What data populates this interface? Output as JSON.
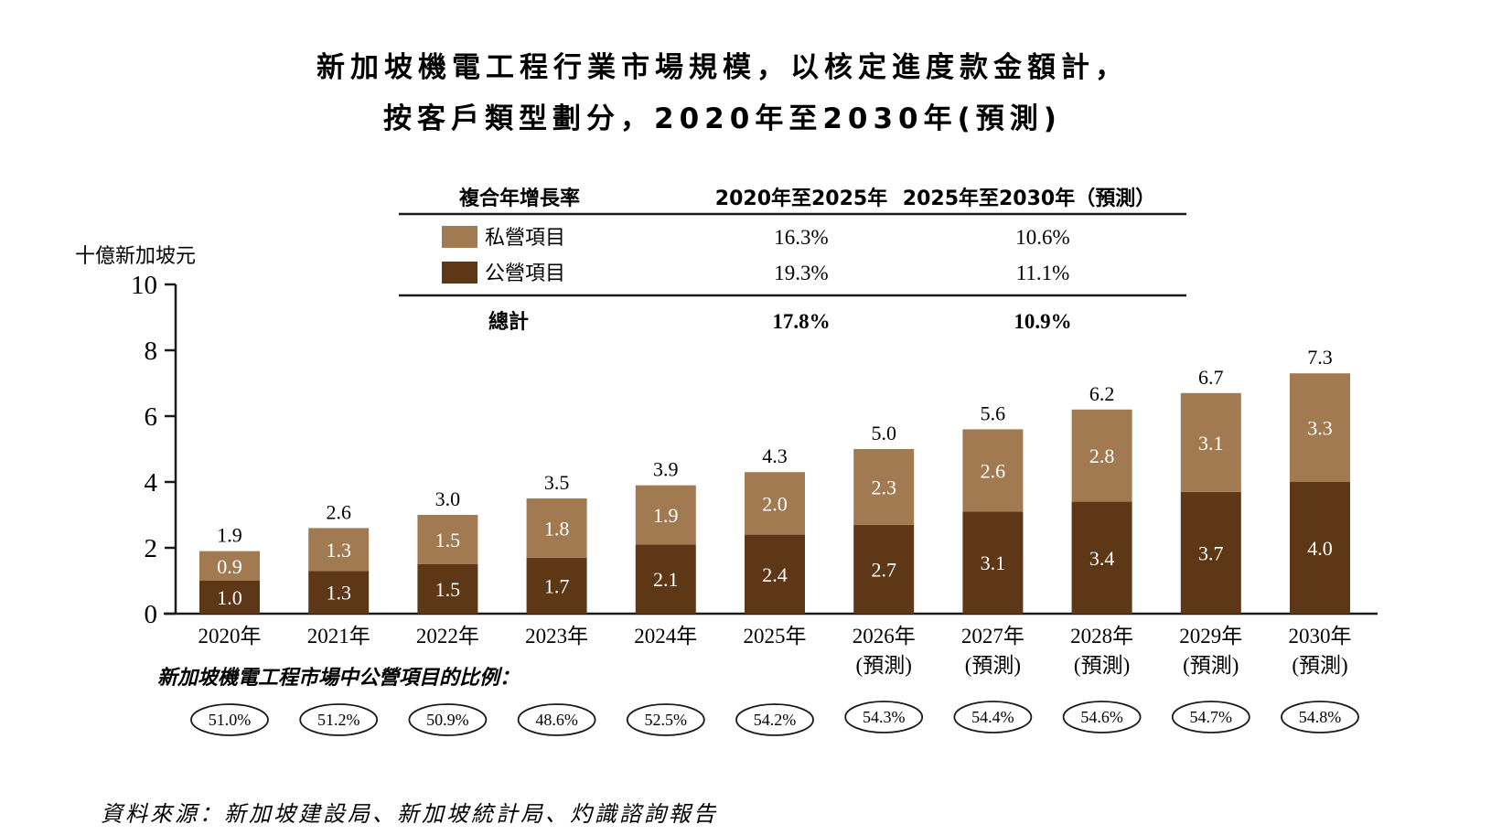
{
  "chart_data": {
    "type": "bar",
    "stacked": true,
    "title_line1": "新加坡機電工程行業市場規模，以核定進度款金額計，",
    "title_line2": "按客戶類型劃分，2020年至2030年(預測)",
    "ylabel": "十億新加坡元",
    "ylim": [
      0,
      10
    ],
    "yticks": [
      "0",
      "2",
      "4",
      "6",
      "8",
      "10"
    ],
    "categories": [
      {
        "year": "2020年",
        "note": ""
      },
      {
        "year": "2021年",
        "note": ""
      },
      {
        "year": "2022年",
        "note": ""
      },
      {
        "year": "2023年",
        "note": ""
      },
      {
        "year": "2024年",
        "note": ""
      },
      {
        "year": "2025年",
        "note": ""
      },
      {
        "year": "2026年",
        "note": "(預測)"
      },
      {
        "year": "2027年",
        "note": "(預測)"
      },
      {
        "year": "2028年",
        "note": "(預測)"
      },
      {
        "year": "2029年",
        "note": "(預測)"
      },
      {
        "year": "2030年",
        "note": "(預測)"
      }
    ],
    "series": [
      {
        "name": "公營項目",
        "color": "#5e3716",
        "values": [
          1.0,
          1.3,
          1.5,
          1.7,
          2.1,
          2.4,
          2.7,
          3.1,
          3.4,
          3.7,
          4.0
        ],
        "labels": [
          "1.0",
          "1.3",
          "1.5",
          "1.7",
          "2.1",
          "2.4",
          "2.7",
          "3.1",
          "3.4",
          "3.7",
          "4.0"
        ]
      },
      {
        "name": "私營項目",
        "color": "#a27a52",
        "values": [
          0.9,
          1.3,
          1.5,
          1.8,
          1.9,
          2.0,
          2.3,
          2.6,
          2.8,
          3.1,
          3.3
        ],
        "labels": [
          "0.9",
          "1.3",
          "1.5",
          "1.8",
          "1.9",
          "2.0",
          "2.3",
          "2.6",
          "2.8",
          "3.1",
          "3.3"
        ]
      }
    ],
    "totals": [
      1.9,
      2.6,
      3.0,
      3.5,
      3.9,
      4.3,
      5.0,
      5.6,
      6.2,
      6.7,
      7.3
    ],
    "total_labels": [
      "1.9",
      "2.6",
      "3.0",
      "3.5",
      "3.9",
      "4.3",
      "5.0",
      "5.6",
      "6.2",
      "6.7",
      "7.3"
    ],
    "cagr_table": {
      "header": [
        "複合年增長率",
        "2020年至2025年",
        "2025年至2030年（預測）"
      ],
      "rows": [
        {
          "name": "私營項目",
          "v1": "16.3%",
          "v2": "10.6%"
        },
        {
          "name": "公營項目",
          "v1": "19.3%",
          "v2": "11.1%"
        }
      ],
      "total": {
        "name": "總計",
        "v1": "17.8%",
        "v2": "10.9%"
      }
    },
    "public_share_title": "新加坡機電工程市場中公營項目的比例：",
    "public_share": [
      "51.0%",
      "51.2%",
      "50.9%",
      "48.6%",
      "52.5%",
      "54.2%",
      "54.3%",
      "54.4%",
      "54.6%",
      "54.7%",
      "54.8%"
    ]
  },
  "source": "資料來源：新加坡建設局、新加坡統計局、灼識諮詢報告"
}
